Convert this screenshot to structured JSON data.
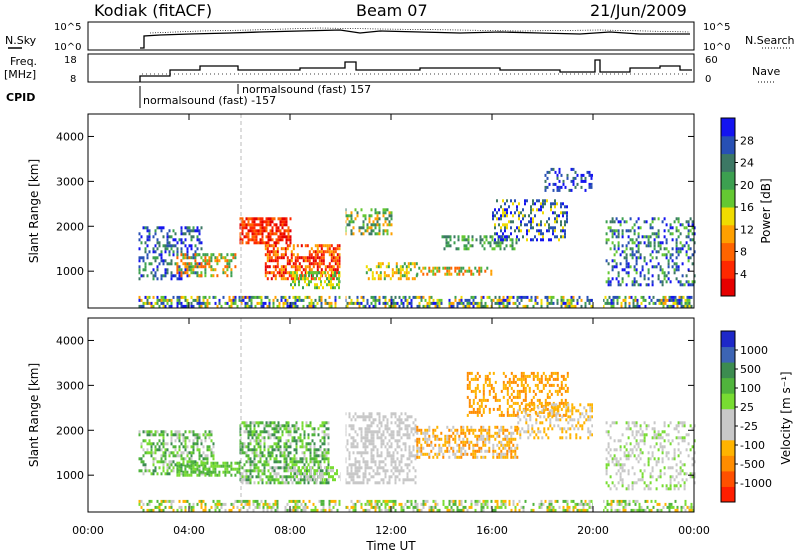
{
  "header": {
    "station": "Kodiak (fitACF)",
    "beam": "Beam 07",
    "date": "21/Jun/2009"
  },
  "nsky_panel": {
    "left_label": "N.Sky",
    "right_label": "N.Search",
    "left_ticks": [
      "10^5",
      "10^0"
    ],
    "right_ticks": [
      "10^5",
      "10^0"
    ]
  },
  "freq_panel": {
    "left_label_line1": "Freq.",
    "left_label_line2": "[MHz]",
    "right_label": "Nave",
    "left_ticks": [
      "18",
      "8"
    ],
    "right_ticks": [
      "60",
      "0"
    ]
  },
  "cpid": {
    "label": "CPID",
    "mode1": "normalsound (fast) -157",
    "mode2": "normalsound (fast) 157"
  },
  "chart_data": [
    {
      "type": "heatmap",
      "panel": "power",
      "ylabel": "Slant Range [km]",
      "yticks": [
        "4000",
        "3000",
        "2000",
        "1000"
      ],
      "ylim": [
        180,
        4500
      ],
      "colorbar_label": "Power [dB]",
      "colorbar_ticks": [
        "28",
        "24",
        "20",
        "16",
        "12",
        "8",
        "4"
      ],
      "colorbar_colors": [
        "#1414f0",
        "#2850b4",
        "#3c7864",
        "#3ca050",
        "#64c832",
        "#f0dc00",
        "#ffa000",
        "#ff6400",
        "#ff2800",
        "#e60000"
      ]
    },
    {
      "type": "heatmap",
      "panel": "velocity",
      "ylabel": "Slant Range [km]",
      "yticks": [
        "4000",
        "3000",
        "2000",
        "1000"
      ],
      "ylim": [
        180,
        4500
      ],
      "colorbar_label": "Velocity [m s⁻¹]",
      "colorbar_ticks": [
        "1000",
        "500",
        "100",
        "25",
        "-25",
        "-100",
        "-500",
        "-1000"
      ],
      "colorbar_colors": [
        "#1e28c8",
        "#3c64b4",
        "#3c8c50",
        "#50b43c",
        "#78dc32",
        "#c8c8c8",
        "#c8c8c8",
        "#ffb400",
        "#ff8c00",
        "#ff5000",
        "#ff1e00"
      ]
    }
  ],
  "xaxis": {
    "label": "Time UT",
    "ticks": [
      "00:00",
      "04:00",
      "08:00",
      "12:00",
      "16:00",
      "20:00",
      "00:00"
    ]
  }
}
